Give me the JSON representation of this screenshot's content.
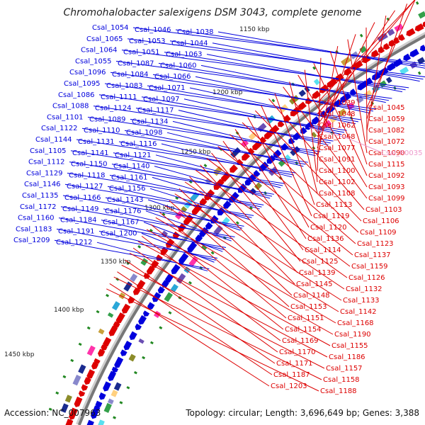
{
  "title": "Chromohalobacter salexigens DSM 3043, complete genome",
  "footer": {
    "accession": "Accession: NC_007963",
    "summary": "Topology: circular; Length: 3,696,649 bp; Genes: 3,388"
  },
  "colors": {
    "forward_strand": "#0000dd",
    "reverse_strand": "#dd0000",
    "rna": "#ee99cc",
    "backbone": "#777777",
    "kbp_tick": "#228822"
  },
  "kbp_ticks": [
    "1150 kbp",
    "1200 kbp",
    "1250 kbp",
    "1300 kbp",
    "1350 kbp",
    "1400 kbp",
    "1450 kbp"
  ],
  "forward_genes": [
    "Csal_1054",
    "Csal_1046",
    "Csal_1038",
    "Csal_1065",
    "Csal_1053",
    "Csal_1044",
    "Csal_1064",
    "Csal_1051",
    "Csal_1063",
    "Csal_1055",
    "Csal_1087",
    "Csal_1060",
    "Csal_1096",
    "Csal_1084",
    "Csal_1066",
    "Csal_1095",
    "Csal_1083",
    "Csal_1071",
    "Csal_1086",
    "Csal_1111",
    "Csal_1097",
    "Csal_1088",
    "Csal_1124",
    "Csal_1117",
    "Csal_1101",
    "Csal_1089",
    "Csal_1134",
    "Csal_1122",
    "Csal_1110",
    "Csal_1098",
    "Csal_1144",
    "Csal_1131",
    "Csal_1116",
    "Csal_1105",
    "Csal_1141",
    "Csal_1121",
    "Csal_1112",
    "Csal_1150",
    "Csal_1140",
    "Csal_1129",
    "Csal_1118",
    "Csal_1161",
    "Csal_1146",
    "Csal_1127",
    "Csal_1156",
    "Csal_1135",
    "Csal_1166",
    "Csal_1143",
    "Csal_1172",
    "Csal_1149",
    "Csal_1176",
    "Csal_1160",
    "Csal_1184",
    "Csal_1167",
    "Csal_1183",
    "Csal_1191",
    "Csal_1200",
    "Csal_1209",
    "Csal_1212"
  ],
  "reverse_genes": [
    "Csal_1039",
    "Csal_1045",
    "Csal_1048",
    "Csal_1059",
    "Csal_1062",
    "Csal_1082",
    "Csal_1068",
    "Csal_1072",
    "Csal_1077",
    "Csal_1090",
    "Csal_1091",
    "Csal_1115",
    "Csal_1100",
    "Csal_1092",
    "Csal_1102",
    "Csal_1093",
    "Csal_1108",
    "Csal_1099",
    "Csal_1113",
    "Csal_1103",
    "Csal_1119",
    "Csal_1106",
    "Csal_1120",
    "Csal_1109",
    "Csal_1136",
    "Csal_1123",
    "Csal_1114",
    "Csal_1137",
    "Csal_1125",
    "Csal_1159",
    "Csal_1139",
    "Csal_1126",
    "Csal_1145",
    "Csal_1132",
    "Csal_1148",
    "Csal_1133",
    "Csal_1153",
    "Csal_1142",
    "Csal_1151",
    "Csal_1168",
    "Csal_1154",
    "Csal_1190",
    "Csal_1169",
    "Csal_1155",
    "Csal_1170",
    "Csal_1186",
    "Csal_1171",
    "Csal_1157",
    "Csal_1187",
    "Csal_1158",
    "Csal_1203",
    "Csal_1188"
  ],
  "rna_genes": [
    "Csal_R0035"
  ]
}
